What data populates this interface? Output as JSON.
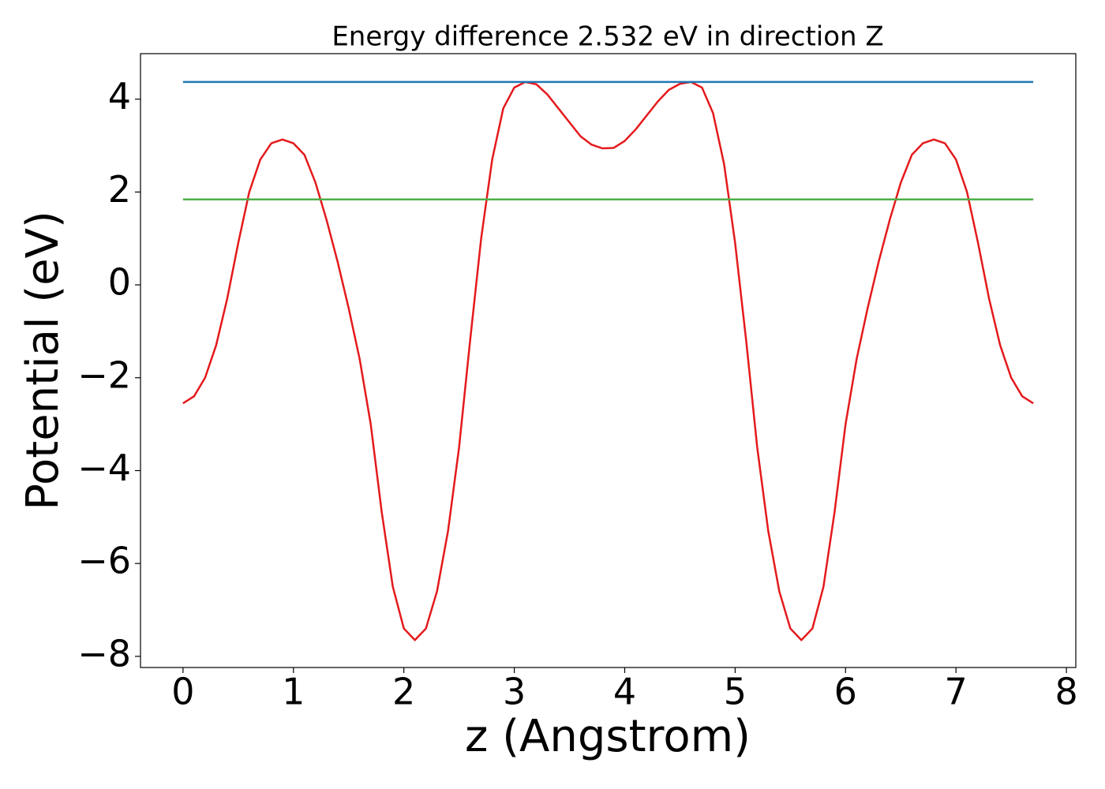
{
  "chart_data": {
    "type": "line",
    "title": "Energy difference 2.532 eV in direction Z",
    "xlabel": "z (Angstrom)",
    "ylabel": "Potential (eV)",
    "xlim": [
      -0.385,
      8.085
    ],
    "ylim": [
      -8.24,
      4.98
    ],
    "xticks": [
      0,
      1,
      2,
      3,
      4,
      5,
      6,
      7,
      8
    ],
    "yticks": [
      {
        "value": -8,
        "label": "−8"
      },
      {
        "value": -6,
        "label": "−6"
      },
      {
        "value": -4,
        "label": "−4"
      },
      {
        "value": -2,
        "label": "−2"
      },
      0,
      2,
      4
    ],
    "grid": false,
    "series": [
      {
        "color": "#e41a1c",
        "x": [
          0,
          0.1,
          0.2,
          0.3,
          0.4,
          0.5,
          0.6,
          0.7,
          0.8,
          0.9,
          1.0,
          1.1,
          1.2,
          1.3,
          1.4,
          1.5,
          1.6,
          1.7,
          1.8,
          1.9,
          2.0,
          2.1,
          2.2,
          2.3,
          2.4,
          2.5,
          2.6,
          2.7,
          2.8,
          2.9,
          3.0,
          3.1,
          3.2,
          3.3,
          3.4,
          3.5,
          3.6,
          3.7,
          3.8,
          3.9,
          4.0,
          4.1,
          4.2,
          4.3,
          4.4,
          4.5,
          4.6,
          4.7,
          4.8,
          4.9,
          5.0,
          5.1,
          5.2,
          5.3,
          5.4,
          5.5,
          5.6,
          5.7,
          5.8,
          5.9,
          6.0,
          6.1,
          6.2,
          6.3,
          6.4,
          6.5,
          6.6,
          6.7,
          6.8,
          6.9,
          7.0,
          7.1,
          7.2,
          7.3,
          7.4,
          7.5,
          7.6,
          7.7
        ],
        "values": [
          -2.55,
          -2.4,
          -2.0,
          -1.3,
          -0.3,
          0.9,
          2.0,
          2.7,
          3.05,
          3.13,
          3.05,
          2.8,
          2.2,
          1.4,
          0.5,
          -0.5,
          -1.6,
          -3.0,
          -4.9,
          -6.5,
          -7.4,
          -7.65,
          -7.4,
          -6.6,
          -5.3,
          -3.5,
          -1.2,
          1.0,
          2.7,
          3.8,
          4.25,
          4.37,
          4.32,
          4.1,
          3.8,
          3.5,
          3.2,
          3.02,
          2.94,
          2.95,
          3.1,
          3.35,
          3.65,
          3.95,
          4.2,
          4.33,
          4.37,
          4.25,
          3.7,
          2.6,
          0.9,
          -1.2,
          -3.5,
          -5.3,
          -6.6,
          -7.4,
          -7.65,
          -7.4,
          -6.5,
          -4.9,
          -3.0,
          -1.6,
          -0.5,
          0.5,
          1.4,
          2.2,
          2.8,
          3.05,
          3.13,
          3.05,
          2.7,
          2.0,
          0.9,
          -0.3,
          -1.3,
          -2.0,
          -2.4,
          -2.55
        ]
      },
      {
        "color": "#1f77b4",
        "x": [
          0,
          7.7
        ],
        "values": [
          4.37,
          4.37
        ]
      },
      {
        "color": "#4daf4a",
        "x": [
          0,
          7.7
        ],
        "values": [
          1.84,
          1.84
        ]
      }
    ]
  }
}
